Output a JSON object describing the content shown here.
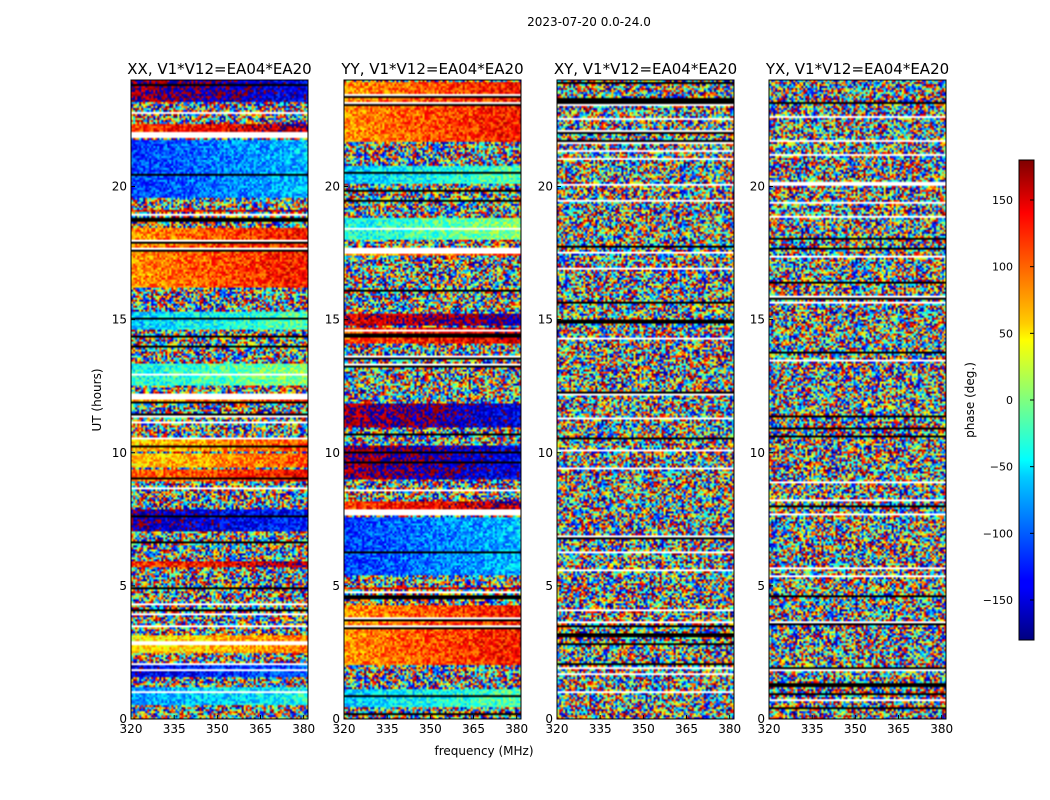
{
  "figure": {
    "suptitle": "2023-07-20 0.0-24.0",
    "xlabel": "frequency (MHz)",
    "ylabel": "UT (hours)"
  },
  "chart_data": [
    {
      "type": "heatmap",
      "title": "XX, V1*V12=EA04*EA20",
      "xlim": [
        320,
        381.5
      ],
      "ylim": [
        0,
        24
      ],
      "xticks": [
        320,
        335,
        350,
        365,
        380
      ],
      "yticks": [
        0,
        5,
        10,
        15,
        20
      ],
      "value_range": [
        -180,
        180
      ]
    },
    {
      "type": "heatmap",
      "title": "YY, V1*V12=EA04*EA20",
      "xlim": [
        320,
        381.5
      ],
      "ylim": [
        0,
        24
      ],
      "xticks": [
        320,
        335,
        350,
        365,
        380
      ],
      "yticks": [
        0,
        5,
        10,
        15,
        20
      ],
      "value_range": [
        -180,
        180
      ]
    },
    {
      "type": "heatmap",
      "title": "XY, V1*V12=EA04*EA20",
      "xlim": [
        320,
        381.5
      ],
      "ylim": [
        0,
        24
      ],
      "xticks": [
        320,
        335,
        350,
        365,
        380
      ],
      "yticks": [
        0,
        5,
        10,
        15,
        20
      ],
      "value_range": [
        -180,
        180
      ]
    },
    {
      "type": "heatmap",
      "title": "YX, V1*V12=EA04*EA20",
      "xlim": [
        320,
        381.5
      ],
      "ylim": [
        0,
        24
      ],
      "xticks": [
        320,
        335,
        350,
        365,
        380
      ],
      "yticks": [
        0,
        5,
        10,
        15,
        20
      ],
      "value_range": [
        -180,
        180
      ]
    }
  ],
  "colorbar": {
    "label": "phase (deg.)",
    "range": [
      -180,
      180
    ],
    "ticks": [
      150,
      100,
      50,
      0,
      -50,
      -100,
      -150
    ],
    "tick_labels": [
      "150",
      "100",
      "50",
      "0",
      "−50",
      "−100",
      "−150"
    ]
  }
}
